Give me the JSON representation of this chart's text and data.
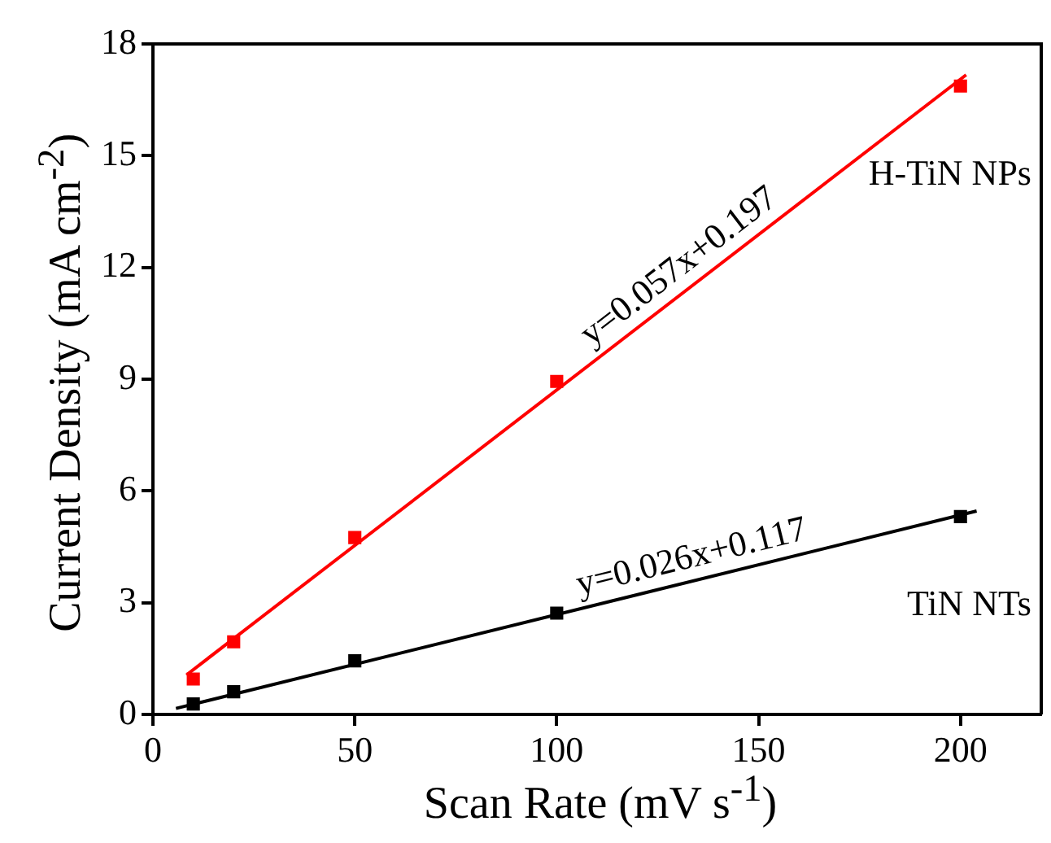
{
  "chart_data": {
    "type": "scatter",
    "xlabel": "Scan Rate (mV s$^{-1}$)",
    "ylabel": "Current Density (mA cm$^{-2}$)",
    "xlim": [
      0,
      220
    ],
    "xticks": [
      0,
      50,
      100,
      150,
      200
    ],
    "ylim": [
      0,
      18
    ],
    "yticks": [
      0,
      3,
      6,
      9,
      12,
      15,
      18
    ],
    "grid": false,
    "legend": false,
    "marker": "square",
    "series": [
      {
        "name": "H-TiN NPs",
        "type": "scatter",
        "color": "#ff0000",
        "x": [
          10,
          20,
          50,
          100,
          200
        ],
        "values": [
          0.95,
          1.95,
          4.75,
          8.94,
          16.87
        ]
      },
      {
        "name": "TiN NTs",
        "type": "scatter",
        "color": "#000000",
        "x": [
          10,
          20,
          50,
          100,
          200
        ],
        "values": [
          0.28,
          0.61,
          1.44,
          2.72,
          5.31
        ]
      },
      {
        "type": "line",
        "color": "#ff0000",
        "marker": "none",
        "line_style": "solid",
        "x": [
          8.3,
          201.4
        ],
        "values": [
          1.06,
          17.17
        ]
      },
      {
        "type": "line",
        "color": "#000000",
        "marker": "none",
        "line_style": "solid",
        "x": [
          5.7,
          204
        ],
        "values": [
          0.16,
          5.46
        ]
      }
    ],
    "annotations": [
      "y=0.057x+0.197",
      "y=0.026x+0.117"
    ]
  }
}
